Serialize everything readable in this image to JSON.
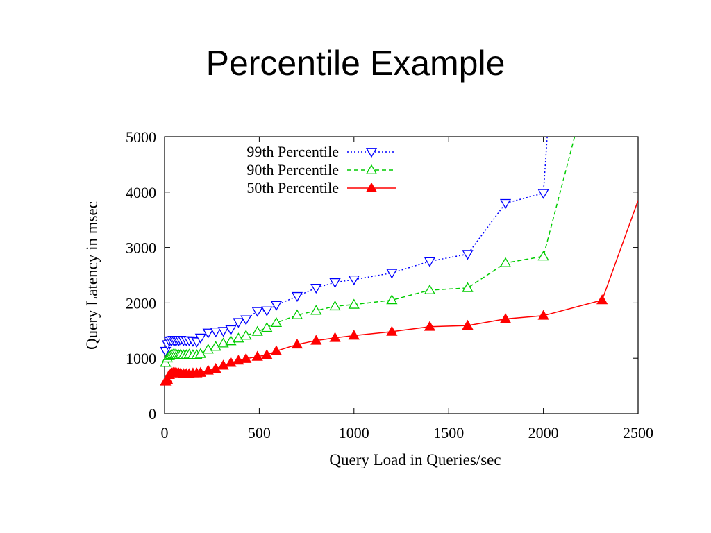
{
  "slide": {
    "title": "Percentile Example"
  },
  "chart_data": {
    "type": "line",
    "title": "",
    "xlabel": "Query Load in Queries/sec",
    "ylabel": "Query Latency in msec",
    "xlim": [
      0,
      2500
    ],
    "ylim": [
      0,
      5000
    ],
    "xticks": [
      0,
      500,
      1000,
      1500,
      2000,
      2500
    ],
    "yticks": [
      0,
      1000,
      2000,
      3000,
      4000,
      5000
    ],
    "xtick_labels": [
      "0",
      "500",
      "1000",
      "1500",
      "2000",
      "2500"
    ],
    "ytick_labels": [
      "0",
      "1000",
      "2000",
      "3000",
      "4000",
      "5000"
    ],
    "grid": false,
    "legend_position": "top-left",
    "series": [
      {
        "name": "99th Percentile",
        "color": "#0000ff",
        "line_style": "dotted",
        "marker": "triangle-down-open",
        "points": [
          [
            5,
            1130
          ],
          [
            15,
            1250
          ],
          [
            25,
            1310
          ],
          [
            35,
            1320
          ],
          [
            45,
            1330
          ],
          [
            55,
            1320
          ],
          [
            65,
            1330
          ],
          [
            75,
            1320
          ],
          [
            85,
            1330
          ],
          [
            100,
            1320
          ],
          [
            115,
            1320
          ],
          [
            130,
            1320
          ],
          [
            150,
            1310
          ],
          [
            170,
            1300
          ],
          [
            190,
            1370
          ],
          [
            230,
            1460
          ],
          [
            270,
            1480
          ],
          [
            310,
            1490
          ],
          [
            350,
            1520
          ],
          [
            390,
            1650
          ],
          [
            430,
            1700
          ],
          [
            490,
            1850
          ],
          [
            540,
            1860
          ],
          [
            590,
            1960
          ],
          [
            700,
            2120
          ],
          [
            800,
            2270
          ],
          [
            900,
            2370
          ],
          [
            1000,
            2420
          ],
          [
            1200,
            2540
          ],
          [
            1400,
            2750
          ],
          [
            1600,
            2880
          ],
          [
            1800,
            3800
          ],
          [
            2000,
            3980
          ],
          [
            2020,
            5000
          ]
        ]
      },
      {
        "name": "90th Percentile",
        "color": "#00cc00",
        "line_style": "dashed",
        "marker": "triangle-up-open",
        "points": [
          [
            5,
            920
          ],
          [
            15,
            1000
          ],
          [
            25,
            1040
          ],
          [
            35,
            1060
          ],
          [
            45,
            1070
          ],
          [
            55,
            1070
          ],
          [
            65,
            1060
          ],
          [
            75,
            1060
          ],
          [
            85,
            1070
          ],
          [
            100,
            1060
          ],
          [
            115,
            1060
          ],
          [
            130,
            1070
          ],
          [
            150,
            1060
          ],
          [
            170,
            1060
          ],
          [
            190,
            1080
          ],
          [
            230,
            1160
          ],
          [
            270,
            1210
          ],
          [
            310,
            1270
          ],
          [
            350,
            1310
          ],
          [
            390,
            1360
          ],
          [
            430,
            1410
          ],
          [
            490,
            1480
          ],
          [
            540,
            1550
          ],
          [
            590,
            1640
          ],
          [
            700,
            1780
          ],
          [
            800,
            1860
          ],
          [
            900,
            1940
          ],
          [
            1000,
            1970
          ],
          [
            1200,
            2050
          ],
          [
            1400,
            2230
          ],
          [
            1600,
            2270
          ],
          [
            1800,
            2720
          ],
          [
            2000,
            2840
          ],
          [
            2165,
            5000
          ]
        ]
      },
      {
        "name": "50th Percentile",
        "color": "#ff0000",
        "line_style": "solid",
        "marker": "triangle-up-filled",
        "points": [
          [
            5,
            580
          ],
          [
            15,
            610
          ],
          [
            25,
            700
          ],
          [
            35,
            730
          ],
          [
            45,
            740
          ],
          [
            55,
            740
          ],
          [
            65,
            730
          ],
          [
            75,
            730
          ],
          [
            85,
            730
          ],
          [
            100,
            720
          ],
          [
            115,
            720
          ],
          [
            130,
            720
          ],
          [
            150,
            730
          ],
          [
            170,
            730
          ],
          [
            190,
            740
          ],
          [
            230,
            780
          ],
          [
            270,
            810
          ],
          [
            310,
            870
          ],
          [
            350,
            920
          ],
          [
            390,
            960
          ],
          [
            430,
            990
          ],
          [
            490,
            1030
          ],
          [
            540,
            1060
          ],
          [
            590,
            1130
          ],
          [
            700,
            1250
          ],
          [
            800,
            1320
          ],
          [
            900,
            1370
          ],
          [
            1000,
            1410
          ],
          [
            1200,
            1480
          ],
          [
            1400,
            1570
          ],
          [
            1600,
            1590
          ],
          [
            1800,
            1710
          ],
          [
            2000,
            1770
          ],
          [
            2310,
            2050
          ],
          [
            2500,
            3850
          ]
        ],
        "unmarked_last": true
      }
    ]
  }
}
